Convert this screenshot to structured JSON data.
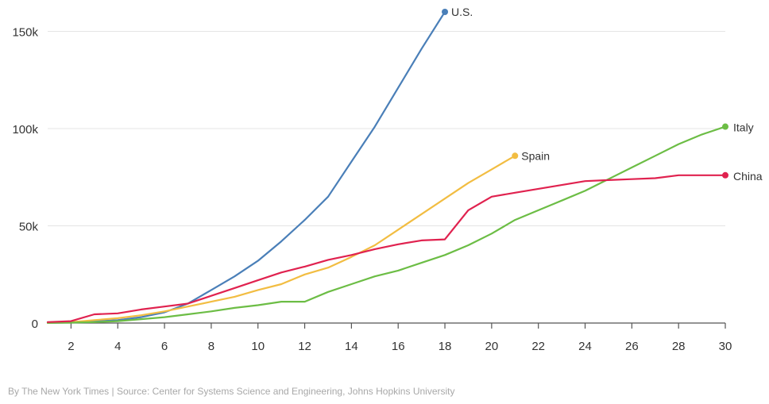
{
  "chart_data": {
    "type": "line",
    "x_ticks": [
      2,
      4,
      6,
      8,
      10,
      12,
      14,
      16,
      18,
      20,
      22,
      24,
      26,
      28,
      30
    ],
    "y_ticks": [
      {
        "value": 0,
        "label": "0"
      },
      {
        "value": 50000,
        "label": "50k"
      },
      {
        "value": 100000,
        "label": "100k"
      },
      {
        "value": 150000,
        "label": "150k"
      }
    ],
    "xlim": [
      1,
      30
    ],
    "ylim": [
      0,
      160000
    ],
    "grid": "horizontal",
    "series": [
      {
        "name": "U.S.",
        "color": "#4a7fb8",
        "x": [
          1,
          2,
          3,
          4,
          5,
          6,
          7,
          8,
          9,
          10,
          11,
          12,
          13,
          14,
          15,
          16,
          17,
          18
        ],
        "y": [
          100,
          300,
          800,
          1500,
          3000,
          5500,
          10000,
          17000,
          24000,
          32000,
          42000,
          53000,
          65000,
          83000,
          101000,
          121000,
          141000,
          160000
        ]
      },
      {
        "name": "Spain",
        "color": "#f2bd42",
        "x": [
          1,
          2,
          3,
          4,
          5,
          6,
          7,
          8,
          9,
          10,
          11,
          12,
          13,
          14,
          15,
          16,
          17,
          18,
          19,
          20,
          21
        ],
        "y": [
          100,
          500,
          1500,
          2500,
          4000,
          6000,
          8500,
          11000,
          13500,
          17000,
          20000,
          25000,
          28500,
          34000,
          40000,
          48000,
          56000,
          64000,
          72000,
          79000,
          86000
        ]
      },
      {
        "name": "Italy",
        "color": "#6cbd45",
        "x": [
          1,
          2,
          3,
          4,
          5,
          6,
          7,
          8,
          9,
          10,
          11,
          12,
          13,
          14,
          15,
          16,
          17,
          18,
          19,
          20,
          21,
          22,
          23,
          24,
          25,
          26,
          27,
          28,
          29,
          30
        ],
        "y": [
          100,
          200,
          500,
          1000,
          2000,
          3000,
          4500,
          6000,
          7800,
          9200,
          11000,
          11000,
          16000,
          20000,
          24000,
          27000,
          31000,
          35000,
          40000,
          46000,
          53000,
          58000,
          63000,
          68000,
          74000,
          80000,
          86000,
          92000,
          97000,
          101000
        ]
      },
      {
        "name": "China",
        "color": "#e0224f",
        "x": [
          1,
          2,
          3,
          4,
          5,
          6,
          7,
          8,
          9,
          10,
          11,
          12,
          13,
          14,
          15,
          16,
          17,
          18,
          19,
          20,
          21,
          22,
          23,
          24,
          25,
          26,
          27,
          28,
          29,
          30
        ],
        "y": [
          500,
          1000,
          4500,
          5000,
          7000,
          8500,
          10000,
          14000,
          18000,
          22000,
          26000,
          29000,
          32500,
          35000,
          38000,
          40500,
          42500,
          43000,
          58000,
          65000,
          67000,
          69000,
          71000,
          73000,
          73500,
          74000,
          74500,
          76000,
          76000,
          76000
        ]
      }
    ]
  },
  "credit": "By The New York Times | Source: Center for Systems Science and Engineering, Johns Hopkins University"
}
